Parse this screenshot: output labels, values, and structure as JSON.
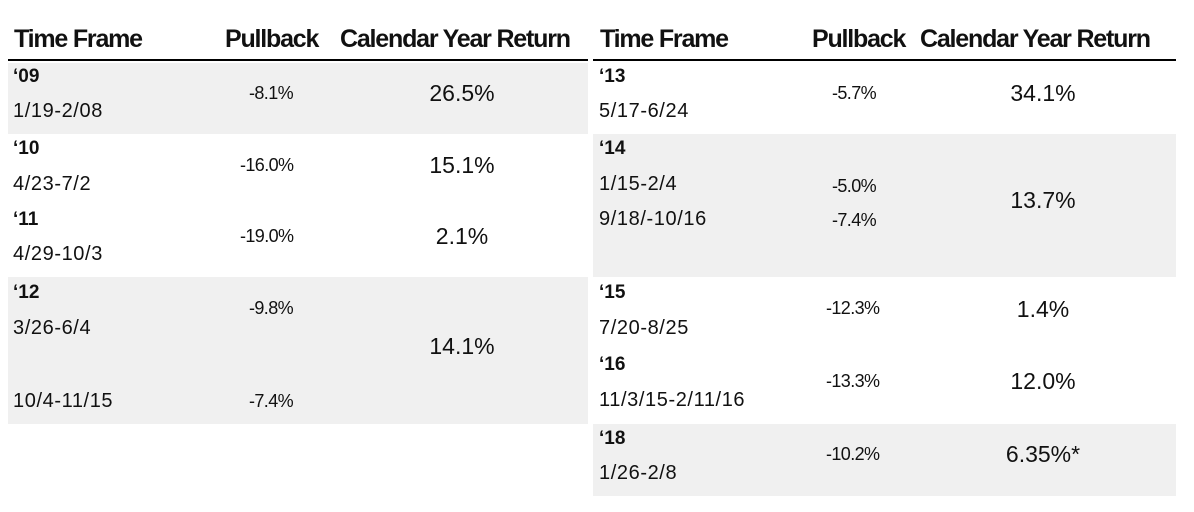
{
  "left": {
    "headers": {
      "time_frame": "Time Frame",
      "pullback": "Pullback",
      "return": "Calendar Year Return"
    },
    "rows": [
      {
        "year": "‘09",
        "dates": [
          "1/19-2/08"
        ],
        "pullbacks": [
          "-8.1%"
        ],
        "return": "26.5%"
      },
      {
        "year": "‘10",
        "dates": [
          "4/23-7/2"
        ],
        "pullbacks": [
          "-16.0%"
        ],
        "return": "15.1%"
      },
      {
        "year": "‘11",
        "dates": [
          "4/29-10/3"
        ],
        "pullbacks": [
          "-19.0%"
        ],
        "return": "2.1%"
      },
      {
        "year": "‘12",
        "dates": [
          "3/26-6/4",
          "10/4-11/15"
        ],
        "pullbacks": [
          "-9.8%",
          "-7.4%"
        ],
        "return": "14.1%"
      }
    ]
  },
  "right": {
    "headers": {
      "time_frame": "Time Frame",
      "pullback": "Pullback",
      "return": "Calendar Year Return"
    },
    "rows": [
      {
        "year": "‘13",
        "dates": [
          "5/17-6/24"
        ],
        "pullbacks": [
          "-5.7%"
        ],
        "return": "34.1%"
      },
      {
        "year": "‘14",
        "dates": [
          "1/15-2/4",
          "9/18/-10/16"
        ],
        "pullbacks": [
          "-5.0%",
          "-7.4%"
        ],
        "return": "13.7%"
      },
      {
        "year": "‘15",
        "dates": [
          "7/20-8/25"
        ],
        "pullbacks": [
          "-12.3%"
        ],
        "return": "1.4%"
      },
      {
        "year": "‘16",
        "dates": [
          "11/3/15-2/11/16"
        ],
        "pullbacks": [
          "-13.3%"
        ],
        "return": "12.0%"
      },
      {
        "year": "‘18",
        "dates": [
          "1/26-2/8"
        ],
        "pullbacks": [
          "-10.2%"
        ],
        "return": "6.35%*"
      }
    ]
  }
}
